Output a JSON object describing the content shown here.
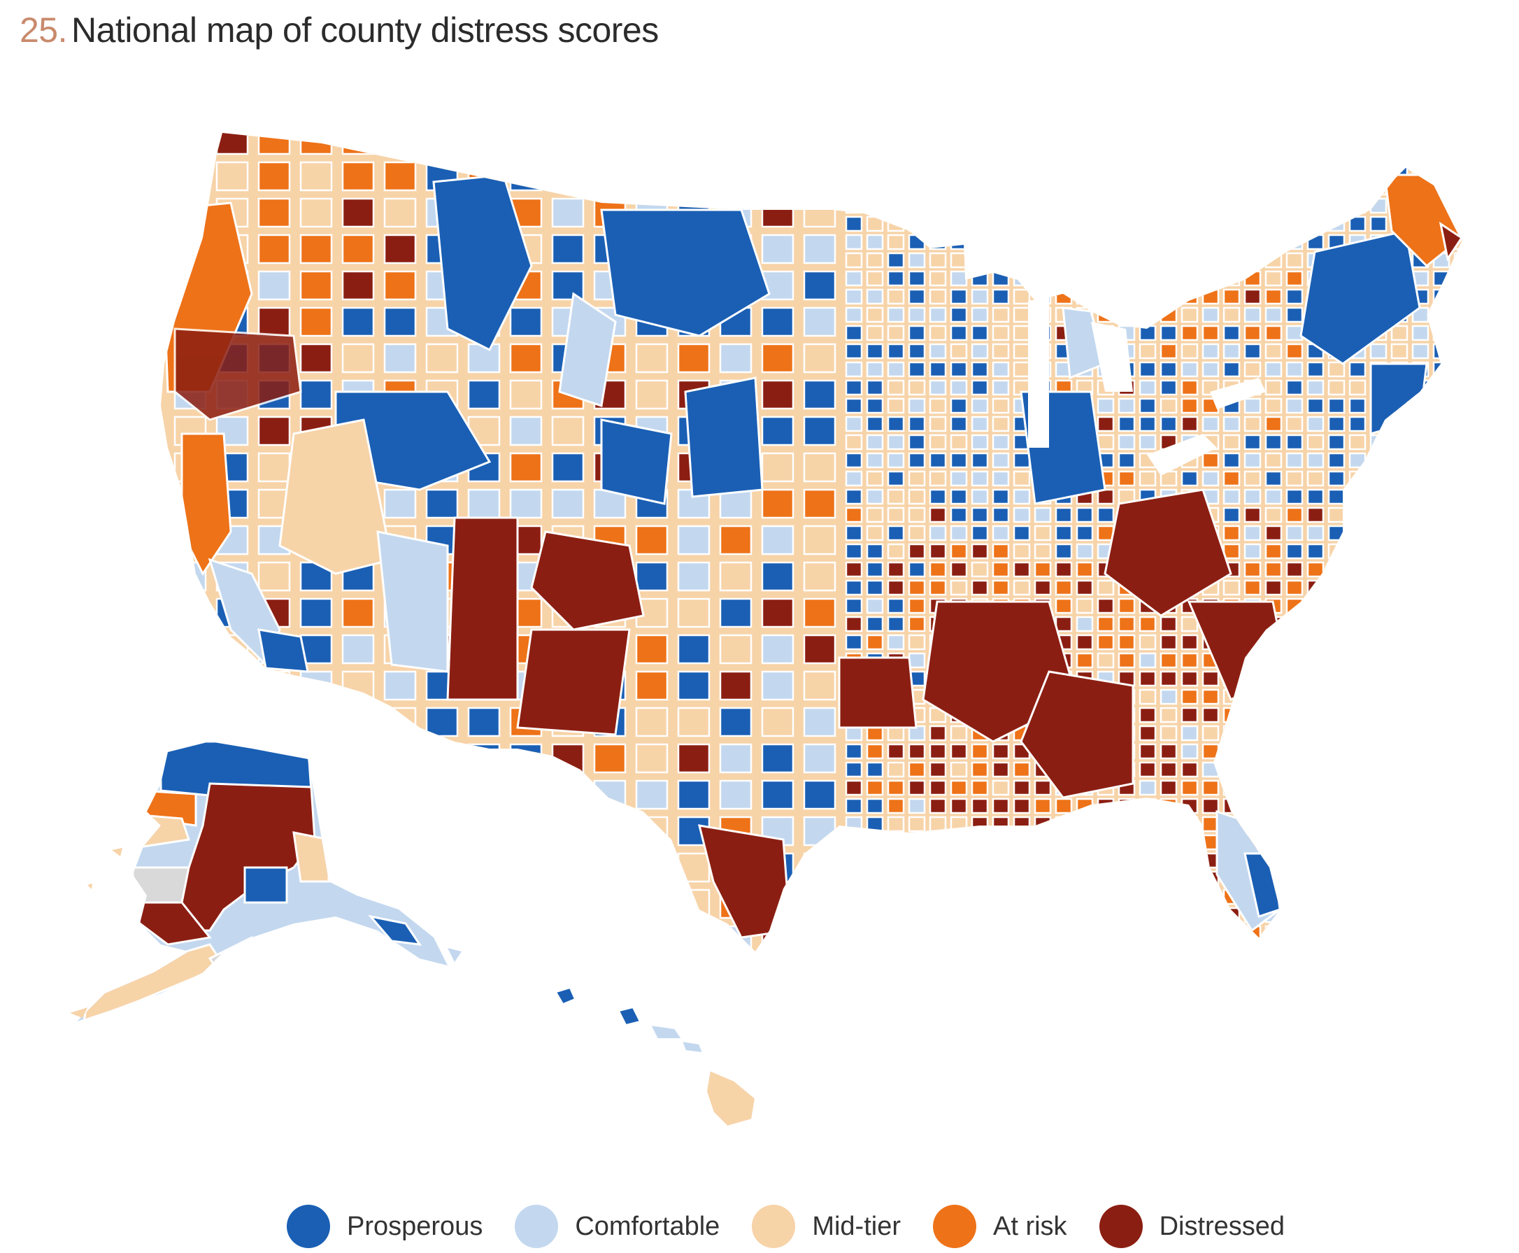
{
  "title": {
    "number": "25.",
    "text": "National map of county distress scores"
  },
  "legend": [
    {
      "key": "prosperous",
      "label": "Prosperous",
      "color": "#1a5fb4"
    },
    {
      "key": "comfortable",
      "label": "Comfortable",
      "color": "#c3d8ef"
    },
    {
      "key": "midtier",
      "label": "Mid-tier",
      "color": "#f7d3a8"
    },
    {
      "key": "atrisk",
      "label": "At risk",
      "color": "#ee7218"
    },
    {
      "key": "distressed",
      "label": "Distressed",
      "color": "#8b1e12"
    }
  ],
  "no_data_color": "#d9d9d9"
}
